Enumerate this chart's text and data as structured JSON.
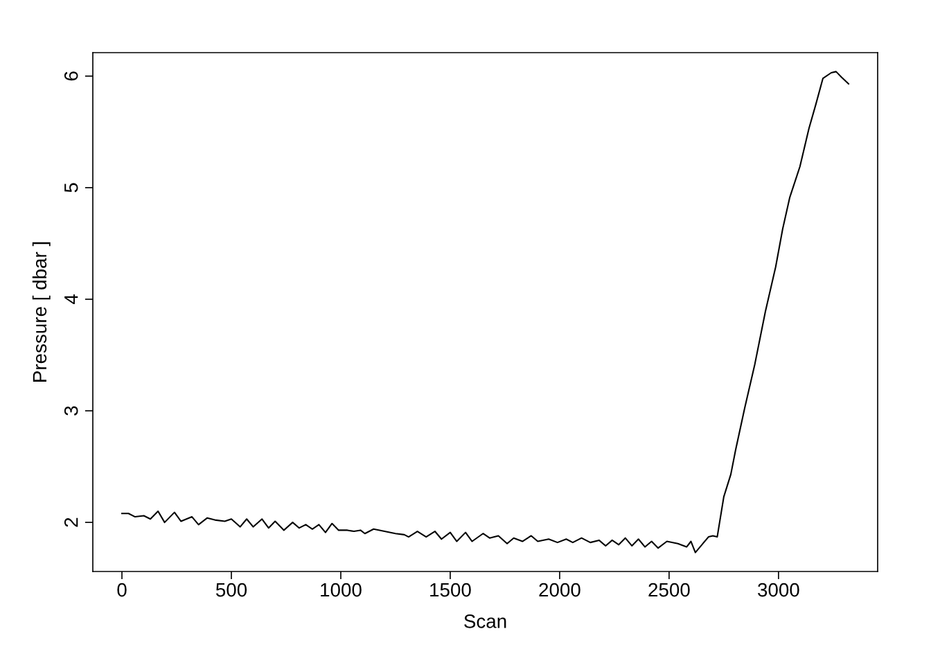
{
  "chart_data": {
    "type": "line",
    "xlabel": "Scan",
    "ylabel": "Pressure [ dbar ]",
    "xlim": [
      -133,
      3453
    ],
    "ylim": [
      1.56,
      6.21
    ],
    "xticks": [
      0,
      500,
      1000,
      1500,
      2000,
      2500,
      3000
    ],
    "yticks": [
      2,
      3,
      4,
      5,
      6
    ],
    "grid": false,
    "legend": false,
    "series": [
      {
        "color": "#000000",
        "x": [
          0,
          30,
          60,
          100,
          130,
          165,
          195,
          240,
          270,
          320,
          350,
          390,
          430,
          470,
          500,
          540,
          570,
          600,
          640,
          670,
          700,
          740,
          780,
          810,
          840,
          870,
          900,
          930,
          960,
          990,
          1030,
          1060,
          1090,
          1110,
          1150,
          1200,
          1250,
          1290,
          1310,
          1350,
          1390,
          1430,
          1460,
          1500,
          1530,
          1570,
          1600,
          1650,
          1680,
          1720,
          1760,
          1790,
          1830,
          1870,
          1900,
          1950,
          1990,
          2030,
          2060,
          2100,
          2140,
          2180,
          2210,
          2240,
          2270,
          2300,
          2330,
          2360,
          2390,
          2420,
          2450,
          2490,
          2540,
          2580,
          2600,
          2620,
          2650,
          2680,
          2700,
          2720,
          2750,
          2782,
          2804,
          2845,
          2892,
          2940,
          2987,
          3019,
          3051,
          3098,
          3139,
          3171,
          3203,
          3241,
          3263,
          3288,
          3320
        ],
        "values": [
          2.08,
          2.08,
          2.05,
          2.06,
          2.03,
          2.1,
          2.0,
          2.09,
          2.01,
          2.05,
          1.98,
          2.04,
          2.02,
          2.01,
          2.03,
          1.96,
          2.03,
          1.96,
          2.03,
          1.95,
          2.01,
          1.93,
          2.0,
          1.95,
          1.98,
          1.94,
          1.98,
          1.91,
          1.99,
          1.93,
          1.93,
          1.92,
          1.93,
          1.9,
          1.94,
          1.92,
          1.9,
          1.89,
          1.87,
          1.92,
          1.87,
          1.92,
          1.85,
          1.91,
          1.83,
          1.91,
          1.83,
          1.9,
          1.86,
          1.88,
          1.81,
          1.86,
          1.83,
          1.88,
          1.83,
          1.85,
          1.82,
          1.85,
          1.82,
          1.86,
          1.82,
          1.84,
          1.79,
          1.84,
          1.8,
          1.86,
          1.79,
          1.85,
          1.78,
          1.83,
          1.77,
          1.83,
          1.81,
          1.78,
          1.83,
          1.73,
          1.8,
          1.87,
          1.88,
          1.87,
          2.23,
          2.43,
          2.65,
          3.02,
          3.42,
          3.89,
          4.29,
          4.63,
          4.91,
          5.19,
          5.53,
          5.75,
          5.98,
          6.03,
          6.04,
          5.99,
          5.93
        ]
      }
    ]
  }
}
